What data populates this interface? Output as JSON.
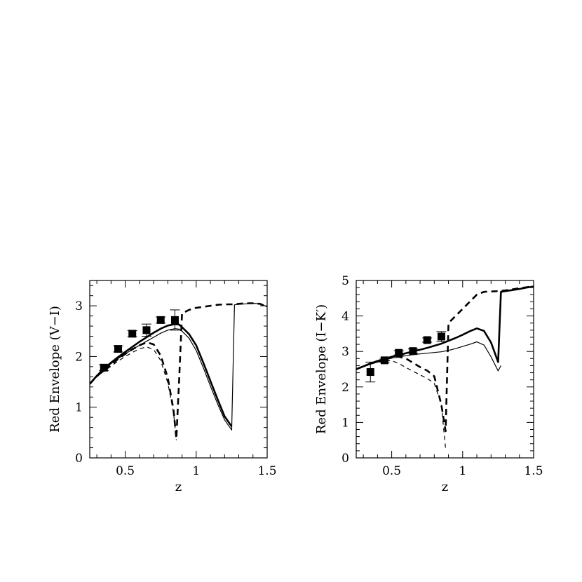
{
  "chart_data": [
    {
      "type": "line",
      "xlabel": "z",
      "ylabel": "Red Envelope (V−I)",
      "xlim": [
        0.25,
        1.5
      ],
      "ylim": [
        0,
        3.5
      ],
      "xticks": [
        0.5,
        1,
        1.5
      ],
      "xtick_labels": [
        "0.5",
        "1",
        "1.5"
      ],
      "yticks": [
        0,
        1,
        2,
        3
      ],
      "ytick_labels": [
        "0",
        "1",
        "2",
        "3"
      ],
      "series": [
        {
          "style": "solid-thick",
          "x": [
            0.25,
            0.3,
            0.35,
            0.4,
            0.45,
            0.5,
            0.55,
            0.6,
            0.65,
            0.7,
            0.75,
            0.8,
            0.85,
            0.88,
            0.9,
            0.95,
            1.0,
            1.05,
            1.1,
            1.15,
            1.2,
            1.25
          ],
          "y": [
            1.46,
            1.62,
            1.76,
            1.88,
            1.99,
            2.09,
            2.19,
            2.29,
            2.38,
            2.47,
            2.55,
            2.61,
            2.64,
            2.63,
            2.58,
            2.44,
            2.22,
            1.88,
            1.52,
            1.16,
            0.82,
            0.62
          ]
        },
        {
          "style": "solid-thin",
          "x": [
            0.25,
            0.3,
            0.35,
            0.4,
            0.45,
            0.5,
            0.55,
            0.6,
            0.65,
            0.7,
            0.75,
            0.8,
            0.85,
            0.88,
            0.9,
            0.95,
            1.0,
            1.05,
            1.1,
            1.15,
            1.2,
            1.25,
            1.27,
            1.3,
            1.35,
            1.4,
            1.45,
            1.5
          ],
          "y": [
            1.46,
            1.61,
            1.74,
            1.86,
            1.96,
            2.05,
            2.14,
            2.22,
            2.3,
            2.38,
            2.46,
            2.52,
            2.55,
            2.54,
            2.5,
            2.36,
            2.12,
            1.78,
            1.42,
            1.07,
            0.75,
            0.55,
            3.02,
            3.03,
            3.04,
            3.05,
            3.04,
            2.98
          ]
        },
        {
          "style": "dashed-thick",
          "x": [
            0.25,
            0.3,
            0.35,
            0.4,
            0.45,
            0.5,
            0.55,
            0.6,
            0.65,
            0.7,
            0.75,
            0.8,
            0.84,
            0.86,
            0.88,
            0.9,
            0.95,
            1.0,
            1.05,
            1.1,
            1.15,
            1.2,
            1.25,
            1.3,
            1.35,
            1.4,
            1.45,
            1.5
          ],
          "y": [
            1.46,
            1.61,
            1.73,
            1.84,
            1.95,
            2.05,
            2.14,
            2.22,
            2.28,
            2.24,
            2.02,
            1.58,
            0.95,
            0.38,
            1.55,
            2.85,
            2.92,
            2.96,
            2.98,
            3.0,
            3.02,
            3.03,
            3.03,
            3.04,
            3.05,
            3.05,
            3.04,
            2.98
          ]
        },
        {
          "style": "dashed-thin",
          "x": [
            0.25,
            0.3,
            0.35,
            0.4,
            0.45,
            0.5,
            0.55,
            0.6,
            0.65,
            0.7,
            0.75,
            0.8,
            0.84,
            0.86
          ],
          "y": [
            1.46,
            1.6,
            1.71,
            1.81,
            1.91,
            2.0,
            2.08,
            2.15,
            2.19,
            2.14,
            1.92,
            1.48,
            0.9,
            0.35
          ]
        },
        {
          "style": "points",
          "x": [
            0.35,
            0.45,
            0.55,
            0.65,
            0.75,
            0.85
          ],
          "y": [
            1.78,
            2.15,
            2.45,
            2.52,
            2.72,
            2.72
          ],
          "err": [
            0.06,
            0.06,
            0.06,
            0.12,
            0.06,
            0.2
          ]
        }
      ]
    },
    {
      "type": "line",
      "xlabel": "z",
      "ylabel": "Red Envelope (I−K′)",
      "xlim": [
        0.25,
        1.5
      ],
      "ylim": [
        0,
        5
      ],
      "xticks": [
        0.5,
        1,
        1.5
      ],
      "xtick_labels": [
        "0.5",
        "1",
        "1.5"
      ],
      "yticks": [
        0,
        1,
        2,
        3,
        4,
        5
      ],
      "ytick_labels": [
        "0",
        "1",
        "2",
        "3",
        "4",
        "5"
      ],
      "series": [
        {
          "style": "solid-thick",
          "x": [
            0.25,
            0.3,
            0.35,
            0.4,
            0.45,
            0.5,
            0.55,
            0.6,
            0.65,
            0.7,
            0.75,
            0.8,
            0.85,
            0.9,
            0.95,
            1.0,
            1.05,
            1.1,
            1.15,
            1.2,
            1.25,
            1.27,
            1.3,
            1.35,
            1.4,
            1.45,
            1.5
          ],
          "y": [
            2.5,
            2.58,
            2.66,
            2.73,
            2.79,
            2.85,
            2.9,
            2.95,
            3.0,
            3.05,
            3.1,
            3.16,
            3.22,
            3.3,
            3.38,
            3.47,
            3.57,
            3.65,
            3.58,
            3.25,
            2.7,
            4.68,
            4.7,
            4.73,
            4.76,
            4.8,
            4.83
          ]
        },
        {
          "style": "solid-thin",
          "x": [
            0.25,
            0.3,
            0.35,
            0.4,
            0.45,
            0.5,
            0.55,
            0.6,
            0.65,
            0.7,
            0.75,
            0.8,
            0.85,
            0.9,
            0.95,
            1.0,
            1.05,
            1.1,
            1.15,
            1.2,
            1.25,
            1.27
          ],
          "y": [
            2.5,
            2.57,
            2.64,
            2.7,
            2.76,
            2.81,
            2.85,
            2.88,
            2.91,
            2.93,
            2.95,
            2.97,
            2.99,
            3.03,
            3.08,
            3.14,
            3.2,
            3.27,
            3.18,
            2.85,
            2.45,
            2.6
          ]
        },
        {
          "style": "dashed-thick",
          "x": [
            0.25,
            0.3,
            0.35,
            0.4,
            0.45,
            0.5,
            0.55,
            0.6,
            0.65,
            0.7,
            0.75,
            0.8,
            0.85,
            0.88,
            0.9,
            0.95,
            1.0,
            1.05,
            1.1,
            1.15,
            1.2,
            1.25,
            1.3,
            1.35,
            1.4,
            1.45,
            1.5
          ],
          "y": [
            2.5,
            2.58,
            2.66,
            2.73,
            2.79,
            2.84,
            2.85,
            2.8,
            2.68,
            2.56,
            2.46,
            2.3,
            1.5,
            0.75,
            3.8,
            4.0,
            4.2,
            4.4,
            4.6,
            4.68,
            4.69,
            4.7,
            4.72,
            4.75,
            4.78,
            4.81,
            4.84
          ]
        },
        {
          "style": "dashed-thin",
          "x": [
            0.25,
            0.3,
            0.35,
            0.4,
            0.45,
            0.5,
            0.55,
            0.6,
            0.65,
            0.7,
            0.75,
            0.8,
            0.85,
            0.88
          ],
          "y": [
            2.5,
            2.57,
            2.64,
            2.7,
            2.74,
            2.74,
            2.66,
            2.55,
            2.44,
            2.34,
            2.24,
            2.1,
            1.5,
            0.25
          ]
        },
        {
          "style": "points",
          "x": [
            0.35,
            0.45,
            0.55,
            0.65,
            0.75,
            0.85
          ],
          "y": [
            2.42,
            2.75,
            2.96,
            3.01,
            3.32,
            3.42
          ],
          "err": [
            0.28,
            0.06,
            0.06,
            0.06,
            0.06,
            0.14
          ]
        }
      ]
    }
  ]
}
